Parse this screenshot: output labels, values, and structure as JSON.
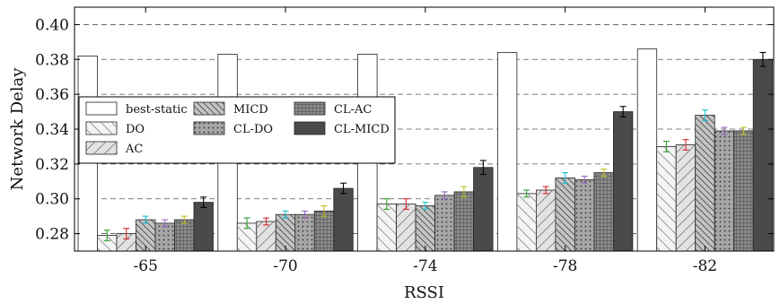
{
  "chart_data": {
    "type": "bar",
    "xlabel": "RSSI",
    "ylabel": "Network Delay",
    "ylim": [
      0.27,
      0.41
    ],
    "yticks": [
      0.28,
      0.3,
      0.32,
      0.34,
      0.36,
      0.38,
      0.4
    ],
    "ytick_labels": [
      "0.28",
      "0.30",
      "0.32",
      "0.34",
      "0.36",
      "0.38",
      "0.40"
    ],
    "grid": "horizontal-dashed",
    "legend_position": "left-middle",
    "categories": [
      "-65",
      "-70",
      "-74",
      "-78",
      "-82"
    ],
    "series": [
      {
        "name": "best-static",
        "values": [
          0.382,
          0.383,
          0.383,
          0.384,
          0.386
        ],
        "errors": [
          0,
          0,
          0,
          0,
          0
        ],
        "fill": "#ffffff",
        "pattern": "none",
        "error_color": "#000000"
      },
      {
        "name": "DO",
        "values": [
          0.279,
          0.286,
          0.297,
          0.303,
          0.33
        ],
        "errors": [
          0.003,
          0.003,
          0.003,
          0.002,
          0.003
        ],
        "fill": "#f4f4f4",
        "pattern": "diag-back",
        "error_color": "#2ca02c"
      },
      {
        "name": "AC",
        "values": [
          0.28,
          0.287,
          0.297,
          0.305,
          0.331
        ],
        "errors": [
          0.003,
          0.002,
          0.003,
          0.002,
          0.003
        ],
        "fill": "#e2e2e2",
        "pattern": "diag-fwd",
        "error_color": "#d62728"
      },
      {
        "name": "MICD",
        "values": [
          0.288,
          0.291,
          0.296,
          0.312,
          0.348
        ],
        "errors": [
          0.002,
          0.002,
          0.002,
          0.003,
          0.003
        ],
        "fill": "#c4c4c4",
        "pattern": "diag-back-dense",
        "error_color": "#17becf"
      },
      {
        "name": "CL-DO",
        "values": [
          0.286,
          0.291,
          0.302,
          0.311,
          0.339
        ],
        "errors": [
          0.002,
          0.002,
          0.002,
          0.002,
          0.002
        ],
        "fill": "#a6a6a6",
        "pattern": "dots",
        "error_color": "#9467bd"
      },
      {
        "name": "CL-AC",
        "values": [
          0.288,
          0.293,
          0.304,
          0.315,
          0.339
        ],
        "errors": [
          0.002,
          0.003,
          0.003,
          0.002,
          0.002
        ],
        "fill": "#8a8a8a",
        "pattern": "grid",
        "error_color": "#bcbd22"
      },
      {
        "name": "CL-MICD",
        "values": [
          0.298,
          0.306,
          0.318,
          0.35,
          0.38
        ],
        "errors": [
          0.003,
          0.003,
          0.004,
          0.003,
          0.004
        ],
        "fill": "#4a4a4a",
        "pattern": "none",
        "error_color": "#000000"
      }
    ]
  }
}
